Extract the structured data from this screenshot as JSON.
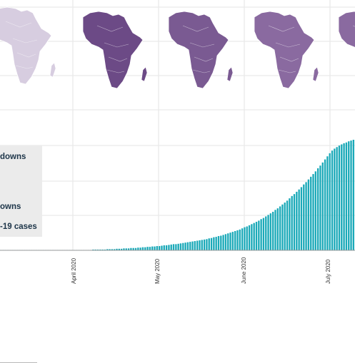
{
  "chart_data": {
    "type": "bar",
    "title": "",
    "xlabel": "",
    "ylabel": "",
    "legend": {
      "placement": "left",
      "entries": [
        "downs",
        "owns",
        "-19 cases"
      ]
    },
    "x_ticks": [
      "April 2020",
      "May 2020",
      "June 2020",
      "July 2020"
    ],
    "grid": true,
    "bar_color": "#1aa9b8",
    "map_colors": [
      "#d7cde0",
      "#6c4a86",
      "#7a5a92",
      "#8a6aa0"
    ],
    "series": [
      {
        "values": [
          1,
          1,
          1,
          1,
          1,
          1,
          1,
          1,
          1,
          1,
          1,
          1,
          1,
          1,
          1,
          1,
          1,
          1,
          1,
          1,
          1,
          1,
          1,
          1,
          1,
          1,
          1,
          1,
          1,
          1,
          1,
          1,
          1,
          1,
          1,
          1,
          1,
          1,
          1,
          2,
          2,
          2,
          2,
          2,
          2,
          3,
          3,
          3,
          3,
          4,
          4,
          4,
          5,
          5,
          5,
          6,
          6,
          6,
          7,
          7,
          8,
          8,
          9,
          9,
          10,
          10,
          11,
          11,
          12,
          13,
          13,
          14,
          15,
          16,
          16,
          17,
          18,
          19,
          20,
          21,
          22,
          23,
          24,
          25,
          26,
          27,
          28,
          29,
          31,
          32,
          34,
          35,
          37,
          38,
          40,
          42,
          44,
          46,
          48,
          50,
          52,
          54,
          57,
          60,
          62,
          65,
          68,
          71,
          74,
          77,
          81,
          84,
          88,
          92,
          96,
          100,
          105,
          109,
          114,
          119,
          124,
          129,
          135,
          141,
          146,
          152,
          158,
          164,
          171,
          177,
          184,
          191,
          198,
          205,
          213,
          220,
          228,
          236,
          244,
          252,
          259,
          264,
          268,
          272,
          275,
          278,
          280,
          283,
          285,
          287
        ]
      }
    ]
  }
}
